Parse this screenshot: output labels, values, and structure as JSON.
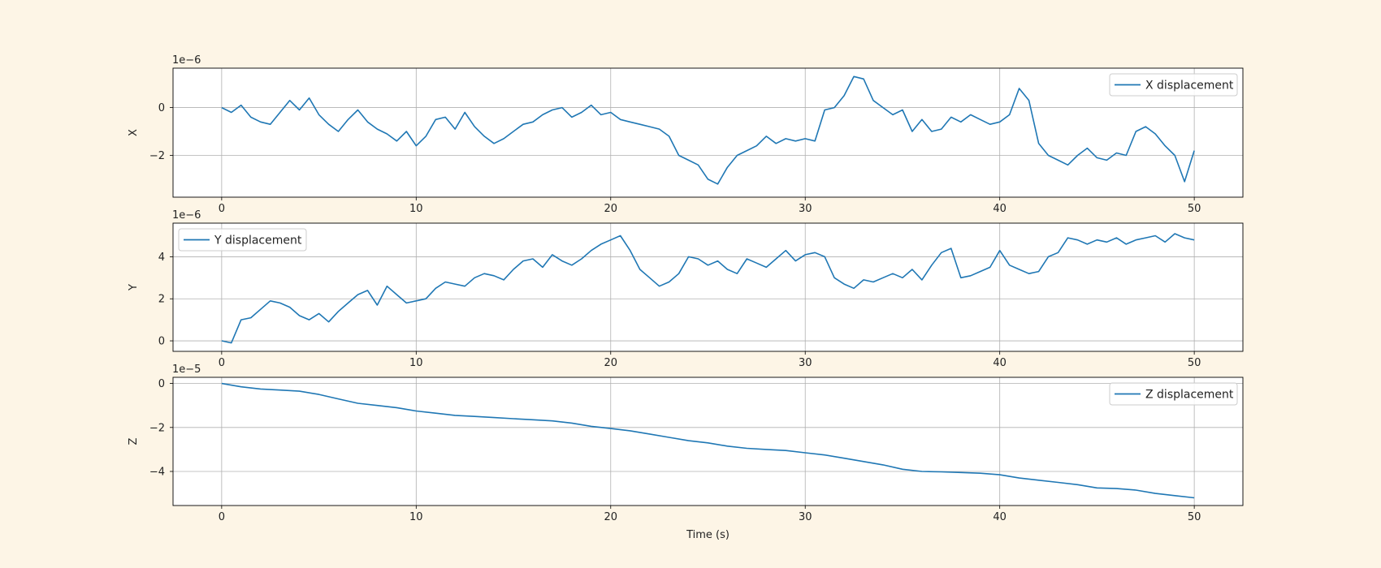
{
  "chart_data": [
    {
      "type": "line",
      "ylabel": "X",
      "xlabel": "Time (s)",
      "offset_label": "1e−6",
      "scale": 1e-06,
      "xlim": [
        -2.5,
        52.5
      ],
      "ylim": [
        -3.75,
        1.65
      ],
      "xticks": [
        0,
        10,
        20,
        30,
        40,
        50
      ],
      "yticks": [
        -2,
        0
      ],
      "grid": true,
      "legend_position": "upper right",
      "series": [
        {
          "name": "X displacement",
          "color": "#1f77b4",
          "x": [
            0,
            0.5,
            1,
            1.5,
            2,
            2.5,
            3,
            3.5,
            4,
            4.5,
            5,
            5.5,
            6,
            6.5,
            7,
            7.5,
            8,
            8.5,
            9,
            9.5,
            10,
            10.5,
            11,
            11.5,
            12,
            12.5,
            13,
            13.5,
            14,
            14.5,
            15,
            15.5,
            16,
            16.5,
            17,
            17.5,
            18,
            18.5,
            19,
            19.5,
            20,
            20.5,
            21,
            21.5,
            22,
            22.5,
            23,
            23.5,
            24,
            24.5,
            25,
            25.5,
            26,
            26.5,
            27,
            27.5,
            28,
            28.5,
            29,
            29.5,
            30,
            30.5,
            31,
            31.5,
            32,
            32.5,
            33,
            33.5,
            34,
            34.5,
            35,
            35.5,
            36,
            36.5,
            37,
            37.5,
            38,
            38.5,
            39,
            39.5,
            40,
            40.5,
            41,
            41.5,
            42,
            42.5,
            43,
            43.5,
            44,
            44.5,
            45,
            45.5,
            46,
            46.5,
            47,
            47.5,
            48,
            48.5,
            49,
            49.5,
            50
          ],
          "y": [
            0,
            -0.2,
            0.1,
            -0.4,
            -0.6,
            -0.7,
            -0.2,
            0.3,
            -0.1,
            0.4,
            -0.3,
            -0.7,
            -1.0,
            -0.5,
            -0.1,
            -0.6,
            -0.9,
            -1.1,
            -1.4,
            -1.0,
            -1.6,
            -1.2,
            -0.5,
            -0.4,
            -0.9,
            -0.2,
            -0.8,
            -1.2,
            -1.5,
            -1.3,
            -1.0,
            -0.7,
            -0.6,
            -0.3,
            -0.1,
            0.0,
            -0.4,
            -0.2,
            0.1,
            -0.3,
            -0.2,
            -0.5,
            -0.6,
            -0.7,
            -0.8,
            -0.9,
            -1.2,
            -2.0,
            -2.2,
            -2.4,
            -3.0,
            -3.2,
            -2.5,
            -2.0,
            -1.8,
            -1.6,
            -1.2,
            -1.5,
            -1.3,
            -1.4,
            -1.3,
            -1.4,
            -0.1,
            0.0,
            0.5,
            1.3,
            1.2,
            0.3,
            0.0,
            -0.3,
            -0.1,
            -1.0,
            -0.5,
            -1.0,
            -0.9,
            -0.4,
            -0.6,
            -0.3,
            -0.5,
            -0.7,
            -0.6,
            -0.3,
            0.8,
            0.3,
            -1.5,
            -2.0,
            -2.2,
            -2.4,
            -2.0,
            -1.7,
            -2.1,
            -2.2,
            -1.9,
            -2.0,
            -1.0,
            -0.8,
            -1.1,
            -1.6,
            -2.0,
            -3.1,
            -1.8
          ]
        }
      ]
    },
    {
      "type": "line",
      "ylabel": "Y",
      "xlabel": "Time (s)",
      "offset_label": "1e−6",
      "scale": 1e-06,
      "xlim": [
        -2.5,
        52.5
      ],
      "ylim": [
        -0.5,
        5.6
      ],
      "xticks": [
        0,
        10,
        20,
        30,
        40,
        50
      ],
      "yticks": [
        0,
        2,
        4
      ],
      "grid": true,
      "legend_position": "upper left",
      "series": [
        {
          "name": "Y displacement",
          "color": "#1f77b4",
          "x": [
            0,
            0.5,
            1,
            1.5,
            2,
            2.5,
            3,
            3.5,
            4,
            4.5,
            5,
            5.5,
            6,
            6.5,
            7,
            7.5,
            8,
            8.5,
            9,
            9.5,
            10,
            10.5,
            11,
            11.5,
            12,
            12.5,
            13,
            13.5,
            14,
            14.5,
            15,
            15.5,
            16,
            16.5,
            17,
            17.5,
            18,
            18.5,
            19,
            19.5,
            20,
            20.5,
            21,
            21.5,
            22,
            22.5,
            23,
            23.5,
            24,
            24.5,
            25,
            25.5,
            26,
            26.5,
            27,
            27.5,
            28,
            28.5,
            29,
            29.5,
            30,
            30.5,
            31,
            31.5,
            32,
            32.5,
            33,
            33.5,
            34,
            34.5,
            35,
            35.5,
            36,
            36.5,
            37,
            37.5,
            38,
            38.5,
            39,
            39.5,
            40,
            40.5,
            41,
            41.5,
            42,
            42.5,
            43,
            43.5,
            44,
            44.5,
            45,
            45.5,
            46,
            46.5,
            47,
            47.5,
            48,
            48.5,
            49,
            49.5,
            50
          ],
          "y": [
            0,
            -0.1,
            1.0,
            1.1,
            1.5,
            1.9,
            1.8,
            1.6,
            1.2,
            1.0,
            1.3,
            0.9,
            1.4,
            1.8,
            2.2,
            2.4,
            1.7,
            2.6,
            2.2,
            1.8,
            1.9,
            2.0,
            2.5,
            2.8,
            2.7,
            2.6,
            3.0,
            3.2,
            3.1,
            2.9,
            3.4,
            3.8,
            3.9,
            3.5,
            4.1,
            3.8,
            3.6,
            3.9,
            4.3,
            4.6,
            4.8,
            5.0,
            4.3,
            3.4,
            3.0,
            2.6,
            2.8,
            3.2,
            4.0,
            3.9,
            3.6,
            3.8,
            3.4,
            3.2,
            3.9,
            3.7,
            3.5,
            3.9,
            4.3,
            3.8,
            4.1,
            4.2,
            4.0,
            3.0,
            2.7,
            2.5,
            2.9,
            2.8,
            3.0,
            3.2,
            3.0,
            3.4,
            2.9,
            3.6,
            4.2,
            4.4,
            3.0,
            3.1,
            3.3,
            3.5,
            4.3,
            3.6,
            3.4,
            3.2,
            3.3,
            4.0,
            4.2,
            4.9,
            4.8,
            4.6,
            4.8,
            4.7,
            4.9,
            4.6,
            4.8,
            4.9,
            5.0,
            4.7,
            5.1,
            4.9,
            4.8
          ]
        }
      ]
    },
    {
      "type": "line",
      "ylabel": "Z",
      "xlabel": "Time (s)",
      "offset_label": "1e−5",
      "scale": 1e-05,
      "xlim": [
        -2.5,
        52.5
      ],
      "ylim": [
        -5.55,
        0.28
      ],
      "xticks": [
        0,
        10,
        20,
        30,
        40,
        50
      ],
      "yticks": [
        -4,
        -2,
        0
      ],
      "grid": true,
      "legend_position": "upper right",
      "series": [
        {
          "name": "Z displacement",
          "color": "#1f77b4",
          "x": [
            0,
            1,
            2,
            3,
            4,
            5,
            6,
            7,
            8,
            9,
            10,
            11,
            12,
            13,
            14,
            15,
            16,
            17,
            18,
            19,
            20,
            21,
            22,
            23,
            24,
            25,
            26,
            27,
            28,
            29,
            30,
            31,
            32,
            33,
            34,
            35,
            36,
            37,
            38,
            39,
            40,
            41,
            42,
            43,
            44,
            45,
            46,
            47,
            48,
            49,
            50
          ],
          "y": [
            0,
            -0.15,
            -0.25,
            -0.3,
            -0.35,
            -0.5,
            -0.7,
            -0.9,
            -1.0,
            -1.1,
            -1.25,
            -1.35,
            -1.45,
            -1.5,
            -1.55,
            -1.6,
            -1.65,
            -1.7,
            -1.8,
            -1.95,
            -2.05,
            -2.15,
            -2.3,
            -2.45,
            -2.6,
            -2.7,
            -2.85,
            -2.95,
            -3.0,
            -3.05,
            -3.15,
            -3.25,
            -3.4,
            -3.55,
            -3.7,
            -3.9,
            -4.0,
            -4.02,
            -4.05,
            -4.08,
            -4.15,
            -4.3,
            -4.4,
            -4.5,
            -4.6,
            -4.75,
            -4.78,
            -4.85,
            -5.0,
            -5.1,
            -5.2
          ]
        }
      ]
    }
  ]
}
